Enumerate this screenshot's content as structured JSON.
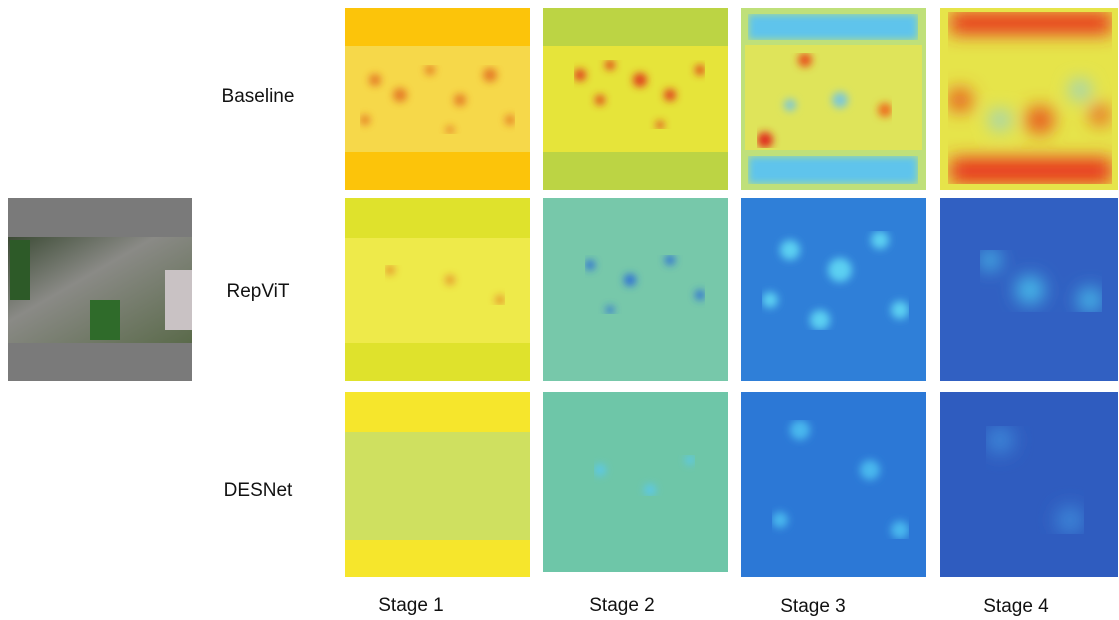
{
  "rows": [
    "Baseline",
    "RepViT",
    "DESNet"
  ],
  "stages": [
    "Stage 1",
    "Stage 2",
    "Stage 3",
    "Stage 4"
  ]
}
